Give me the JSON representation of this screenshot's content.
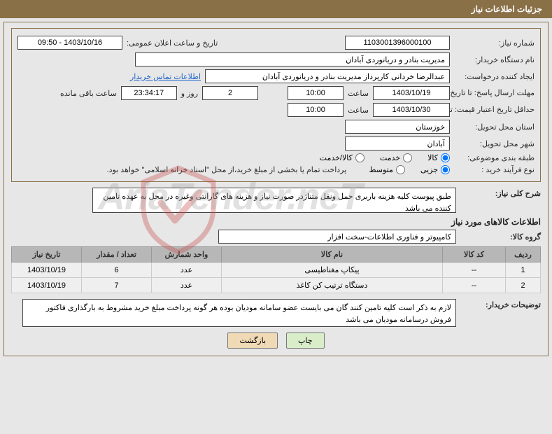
{
  "header": {
    "title": "جزئیات اطلاعات نیاز"
  },
  "fields": {
    "need_number_label": "شماره نیاز:",
    "need_number": "1103001396000100",
    "announce_label": "تاریخ و ساعت اعلان عمومی:",
    "announce_value": "1403/10/16 - 09:50",
    "buyer_org_label": "نام دستگاه خریدار:",
    "buyer_org": "مدیریت بنادر و دریانوردی آبادان",
    "requester_label": "ایجاد کننده درخواست:",
    "requester": "عبدالرضا خردانی کارپرداز مدیریت بنادر و دریانوردی آبادان",
    "contact_link": "اطلاعات تماس خریدار",
    "deadline_label": "مهلت ارسال پاسخ: تا تاریخ:",
    "deadline_date": "1403/10/19",
    "time_label": "ساعت",
    "deadline_time": "10:00",
    "days_left": "2",
    "days_word": "روز و",
    "hours_left": "23:34:17",
    "hours_word": "ساعت باقی مانده",
    "validity_label": "حداقل تاریخ اعتبار قیمت: تا تاریخ:",
    "validity_date": "1403/10/30",
    "validity_time": "10:00",
    "province_label": "استان محل تحویل:",
    "province": "خوزستان",
    "city_label": "شهر محل تحویل:",
    "city": "آبادان",
    "category_label": "طبقه بندی موضوعی:",
    "purchase_type_label": "نوع فرآیند خرید :",
    "payment_note": "پرداخت تمام یا بخشی از مبلغ خرید،از محل \"اسناد خزانه اسلامی\" خواهد بود."
  },
  "category_options": {
    "opt1": "کالا",
    "opt2": "خدمت",
    "opt3": "کالا/خدمت"
  },
  "purchase_options": {
    "opt1": "جزیی",
    "opt2": "متوسط"
  },
  "overview": {
    "label": "شرح کلی نیاز:",
    "text": "طبق پیوست کلیه هزینه باربری حمل ونقل متناژدر صورت نیاز و هزینه های گارانتی  وغیره در محل به عهده تامین کننده می باشد"
  },
  "items_section": {
    "title": "اطلاعات کالاهای مورد نیاز",
    "group_label": "گروه کالا:",
    "group_value": "کامپیوتر و فناوری اطلاعات-سخت افزار"
  },
  "table": {
    "headers": {
      "row": "ردیف",
      "code": "کد کالا",
      "name": "نام کالا",
      "unit": "واحد شمارش",
      "qty": "تعداد / مقدار",
      "date": "تاریخ نیاز"
    },
    "rows": [
      {
        "n": "1",
        "code": "--",
        "name": "پیکاپ مغناطیسی",
        "unit": "عدد",
        "qty": "6",
        "date": "1403/10/19"
      },
      {
        "n": "2",
        "code": "--",
        "name": "دستگاه ترتیب کن کاغذ",
        "unit": "عدد",
        "qty": "7",
        "date": "1403/10/19"
      }
    ]
  },
  "buyer_note": {
    "label": "توضیحات خریدار:",
    "text": "لازم به ذکر است کلیه تامین کنند گان می بایست عضو سامانه مودیان بوده هر گونه پرداخت مبلغ خرید  مشروط به بارگذاری فاکتور فروش درسامانه مودیان می باشد"
  },
  "buttons": {
    "print": "چاپ",
    "back": "بازگشت"
  },
  "watermark": "AriaTender.neT",
  "colors": {
    "header_bg": "#8a7047",
    "panel_bg": "#e7e7e7",
    "th_bg": "#b7b7b7"
  }
}
